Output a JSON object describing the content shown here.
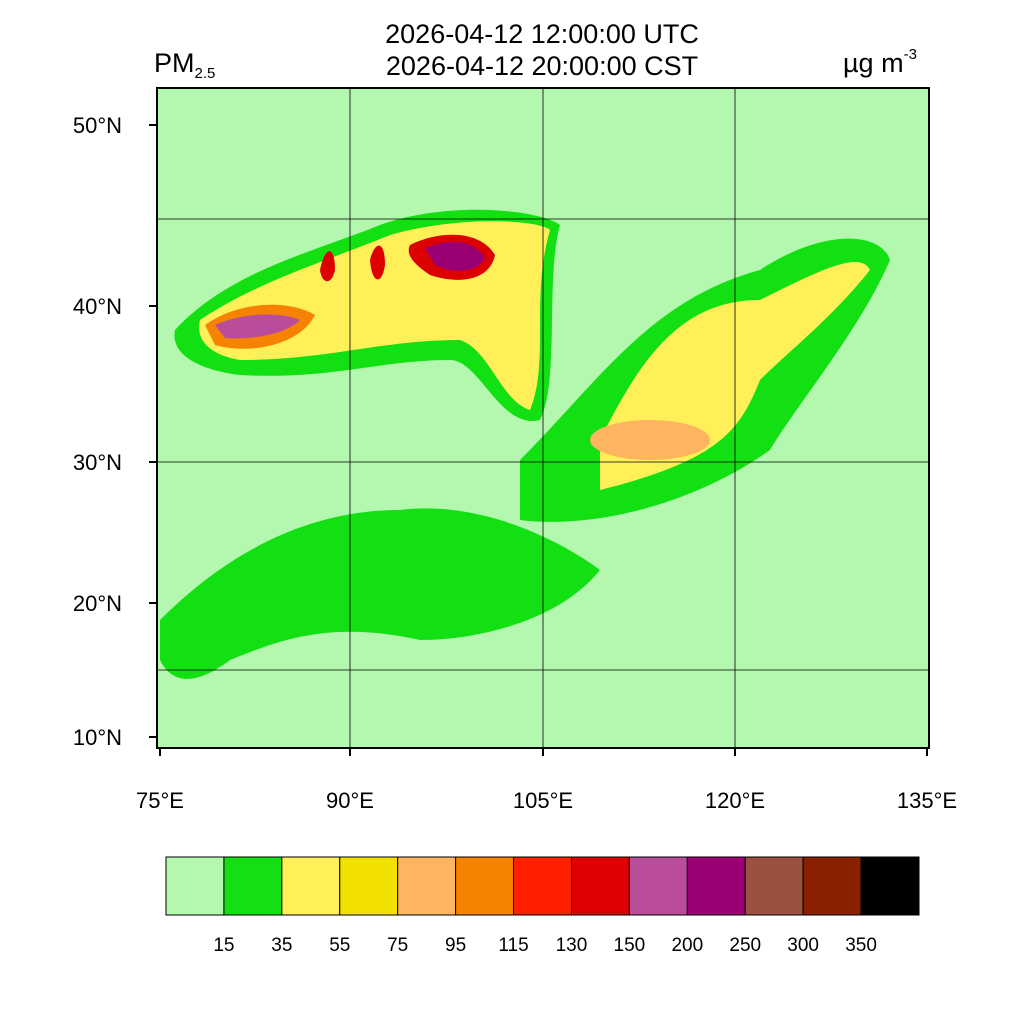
{
  "header": {
    "title_lines": [
      "2026-04-12 12:00:00 UTC",
      "2026-04-12 20:00:00 CST"
    ],
    "variable": "PM",
    "variable_sub": "2.5",
    "unit": "µg m",
    "unit_sup": "-3"
  },
  "map": {
    "lat_labels": [
      "50°N",
      "40°N",
      "30°N",
      "20°N",
      "10°N"
    ],
    "lon_labels": [
      "75°E",
      "90°E",
      "105°E",
      "120°E",
      "135°E"
    ]
  },
  "colorbar": {
    "levels": [
      15,
      35,
      55,
      75,
      95,
      115,
      130,
      150,
      200,
      250,
      300,
      350
    ],
    "colors": [
      "#b4f8b0",
      "#12e012",
      "#fff05a",
      "#f2e000",
      "#ffb45f",
      "#f58200",
      "#ff2000",
      "#dc0000",
      "#ba4c9c",
      "#9a0072",
      "#9c5040",
      "#8a2000",
      "#000000"
    ]
  }
}
